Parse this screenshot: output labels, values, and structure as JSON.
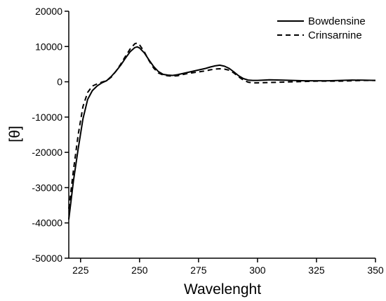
{
  "chart_data": {
    "type": "line",
    "xlabel": "Wavelenght",
    "ylabel": "[θ]",
    "xlim": [
      220,
      350
    ],
    "ylim": [
      -50000,
      20000
    ],
    "xticks": [
      225,
      250,
      275,
      300,
      325,
      350
    ],
    "yticks": [
      20000,
      10000,
      0,
      -10000,
      -20000,
      -30000,
      -40000,
      -50000
    ],
    "grid": false,
    "legend": "top-right",
    "series": [
      {
        "name": "Bowdensine",
        "style": "solid",
        "x": [
          220,
          222,
          224,
          226,
          228,
          230,
          232,
          234,
          236,
          238,
          240,
          242,
          244,
          246,
          248,
          249,
          250,
          252,
          254,
          256,
          258,
          260,
          262,
          264,
          266,
          268,
          270,
          272,
          274,
          276,
          278,
          280,
          282,
          284,
          286,
          288,
          290,
          292,
          294,
          296,
          298,
          300,
          305,
          310,
          315,
          320,
          325,
          330,
          335,
          340,
          345,
          350
        ],
        "y": [
          -39000,
          -28000,
          -19000,
          -10500,
          -5000,
          -2500,
          -1200,
          -300,
          300,
          1500,
          3000,
          4700,
          6700,
          8500,
          9700,
          9900,
          9600,
          8200,
          6200,
          4300,
          2900,
          2100,
          1900,
          1800,
          2000,
          2300,
          2600,
          2900,
          3200,
          3500,
          3800,
          4200,
          4500,
          4700,
          4400,
          3800,
          2800,
          1700,
          900,
          500,
          400,
          400,
          550,
          500,
          400,
          300,
          300,
          300,
          400,
          500,
          450,
          400
        ]
      },
      {
        "name": "Crinsarnine",
        "style": "dashed",
        "x": [
          220,
          222,
          224,
          226,
          228,
          230,
          232,
          234,
          236,
          238,
          240,
          242,
          244,
          246,
          248,
          249,
          250,
          252,
          254,
          256,
          258,
          260,
          262,
          264,
          266,
          268,
          270,
          272,
          274,
          276,
          278,
          280,
          282,
          284,
          286,
          288,
          290,
          292,
          294,
          296,
          298,
          300,
          305,
          310,
          315,
          320,
          325,
          330,
          335,
          340,
          345,
          350
        ],
        "y": [
          -36000,
          -25000,
          -15000,
          -7000,
          -3000,
          -1200,
          -600,
          -100,
          300,
          1300,
          3000,
          5000,
          7200,
          9300,
          10800,
          11000,
          10500,
          8500,
          6000,
          3900,
          2500,
          1900,
          1700,
          1600,
          1700,
          2000,
          2300,
          2500,
          2700,
          2900,
          3100,
          3400,
          3600,
          3700,
          3600,
          3300,
          2500,
          1400,
          500,
          -100,
          -300,
          -300,
          -200,
          -100,
          0,
          100,
          200,
          200,
          200,
          300,
          400,
          400
        ]
      }
    ]
  }
}
